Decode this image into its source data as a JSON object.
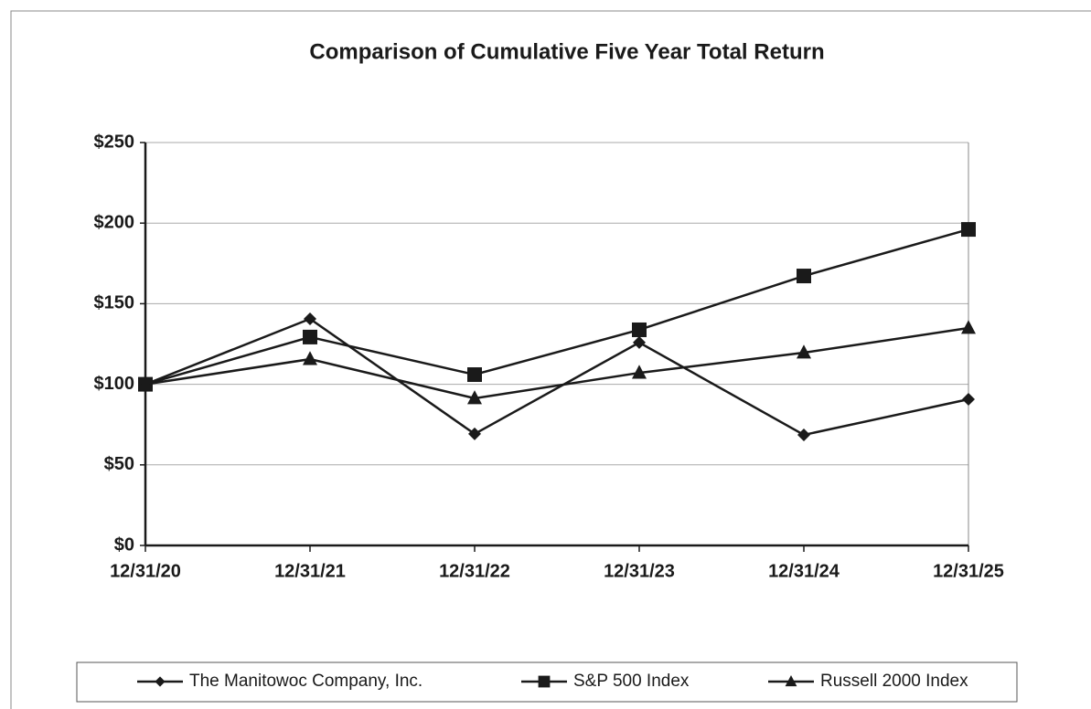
{
  "chart_data": {
    "type": "line",
    "title": "Comparison of Cumulative Five Year Total Return",
    "categories": [
      "12/31/20",
      "12/31/21",
      "12/31/22",
      "12/31/23",
      "12/31/24",
      "12/31/25"
    ],
    "series": [
      {
        "name": "The Manitowoc Company, Inc.",
        "color": "#1a1a1a",
        "marker": "diamond",
        "values": [
          100,
          140.6,
          69.2,
          125.9,
          68.6,
          90.7
        ]
      },
      {
        "name": "S&P 500 Index",
        "color": "#1a1a1a",
        "marker": "square",
        "values": [
          100,
          129.3,
          106,
          133.8,
          167.2,
          196.1
        ]
      },
      {
        "name": "Russell 2000 Index",
        "color": "#1a1a1a",
        "marker": "triangle",
        "values": [
          100,
          115.6,
          91.3,
          107.1,
          119.6,
          134.9
        ]
      }
    ],
    "ylim": [
      0,
      250
    ],
    "yticks": [
      {
        "value": 0,
        "label": "$0"
      },
      {
        "value": 50,
        "label": "$50"
      },
      {
        "value": 100,
        "label": "$100"
      },
      {
        "value": 150,
        "label": "$150"
      },
      {
        "value": 200,
        "label": "$200"
      },
      {
        "value": 250,
        "label": "$250"
      }
    ],
    "grid": true,
    "legend": "bottom"
  }
}
